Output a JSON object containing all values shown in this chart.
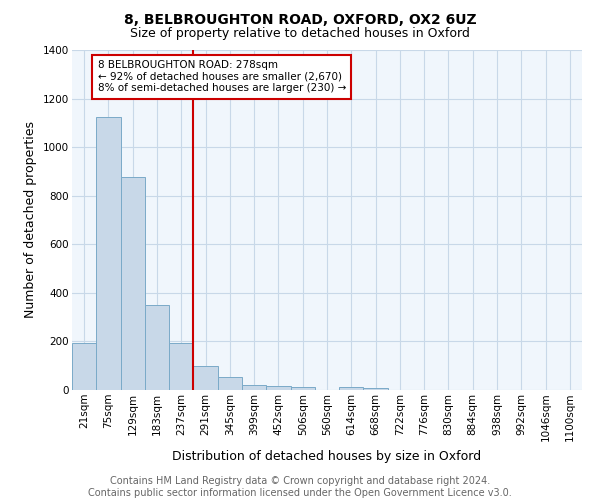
{
  "title_line1": "8, BELBROUGHTON ROAD, OXFORD, OX2 6UZ",
  "title_line2": "Size of property relative to detached houses in Oxford",
  "xlabel": "Distribution of detached houses by size in Oxford",
  "ylabel": "Number of detached properties",
  "categories": [
    "21sqm",
    "75sqm",
    "129sqm",
    "183sqm",
    "237sqm",
    "291sqm",
    "345sqm",
    "399sqm",
    "452sqm",
    "506sqm",
    "560sqm",
    "614sqm",
    "668sqm",
    "722sqm",
    "776sqm",
    "830sqm",
    "884sqm",
    "938sqm",
    "992sqm",
    "1046sqm",
    "1100sqm"
  ],
  "values": [
    193,
    1125,
    878,
    351,
    193,
    100,
    53,
    22,
    17,
    14,
    0,
    13,
    10,
    0,
    0,
    0,
    0,
    0,
    0,
    0,
    0
  ],
  "bar_color": "#c8d8e8",
  "bar_edgecolor": "#7aaac8",
  "vline_x": 4.5,
  "vline_color": "#cc0000",
  "annotation_text": "8 BELBROUGHTON ROAD: 278sqm\n← 92% of detached houses are smaller (2,670)\n8% of semi-detached houses are larger (230) →",
  "annotation_box_edgecolor": "#cc0000",
  "annotation_box_facecolor": "#ffffff",
  "ylim": [
    0,
    1400
  ],
  "yticks": [
    0,
    200,
    400,
    600,
    800,
    1000,
    1200,
    1400
  ],
  "footer_line1": "Contains HM Land Registry data © Crown copyright and database right 2024.",
  "footer_line2": "Contains public sector information licensed under the Open Government Licence v3.0.",
  "plot_bg_color": "#f0f6fc",
  "grid_color": "#c8d8e8",
  "title_fontsize": 10,
  "subtitle_fontsize": 9,
  "axis_label_fontsize": 9,
  "tick_fontsize": 7.5,
  "footer_fontsize": 7
}
